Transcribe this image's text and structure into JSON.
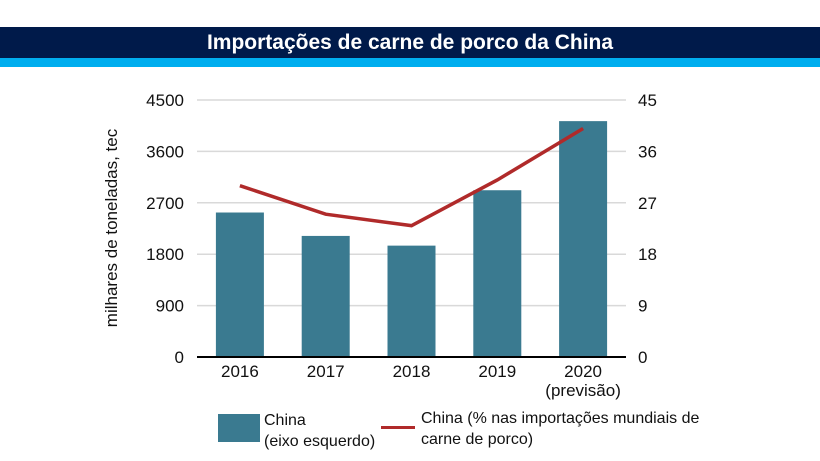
{
  "chart_data": {
    "type": "bar+line",
    "title": "Importações de carne de porco da China",
    "categories": [
      "2016",
      "2017",
      "2018",
      "2019",
      "2020\n(previsão)"
    ],
    "category_labels": [
      [
        "2016"
      ],
      [
        "2017"
      ],
      [
        "2018"
      ],
      [
        "2019"
      ],
      [
        "2020",
        "(previsão)"
      ]
    ],
    "ylabel": "milhares de toneladas, tec",
    "ylim": [
      0,
      4500
    ],
    "yticks": [
      0,
      900,
      1800,
      2700,
      3600,
      4500
    ],
    "y2lim": [
      0,
      45
    ],
    "y2ticks": [
      0,
      9,
      18,
      27,
      36,
      45
    ],
    "grid": true,
    "legend_position": "bottom",
    "series": [
      {
        "name": "China (eixo esquerdo)",
        "legend_lines": [
          "China",
          "(eixo esquerdo)"
        ],
        "type": "bar",
        "axis": "left",
        "color": "#3a7a90",
        "values": [
          2530,
          2120,
          1950,
          2920,
          4130
        ]
      },
      {
        "name": "China (% nas importações mundiais de carne de porco)",
        "legend_lines": [
          "China (% nas importações mundiais de",
          "carne de porco)"
        ],
        "type": "line",
        "axis": "right",
        "color": "#b02a2a",
        "values": [
          30,
          25,
          23,
          31,
          40
        ]
      }
    ]
  },
  "colors": {
    "header": "#001a4a",
    "accent_strip": "#00aeef"
  }
}
